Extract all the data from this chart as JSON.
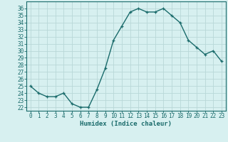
{
  "x": [
    0,
    1,
    2,
    3,
    4,
    5,
    6,
    7,
    8,
    9,
    10,
    11,
    12,
    13,
    14,
    15,
    16,
    17,
    18,
    19,
    20,
    21,
    22,
    23
  ],
  "y": [
    25.0,
    24.0,
    23.5,
    23.5,
    24.0,
    22.5,
    22.0,
    22.0,
    24.5,
    27.5,
    31.5,
    33.5,
    35.5,
    36.0,
    35.5,
    35.5,
    36.0,
    35.0,
    34.0,
    31.5,
    30.5,
    29.5,
    30.0,
    28.5
  ],
  "line_color": "#1a6b6b",
  "marker": "+",
  "marker_size": 3.5,
  "line_width": 1.0,
  "bg_color": "#d7f0f0",
  "grid_color": "#b8d8d8",
  "xlabel": "Humidex (Indice chaleur)",
  "xlim": [
    -0.5,
    23.5
  ],
  "ylim": [
    21.5,
    37.0
  ],
  "yticks": [
    22,
    23,
    24,
    25,
    26,
    27,
    28,
    29,
    30,
    31,
    32,
    33,
    34,
    35,
    36
  ],
  "xtick_labels": [
    "0",
    "1",
    "2",
    "3",
    "4",
    "5",
    "6",
    "7",
    "8",
    "9",
    "10",
    "11",
    "12",
    "13",
    "14",
    "15",
    "16",
    "17",
    "18",
    "19",
    "20",
    "21",
    "22",
    "23"
  ],
  "tick_color": "#1a6b6b",
  "label_fontsize": 6.5,
  "tick_fontsize": 5.5
}
